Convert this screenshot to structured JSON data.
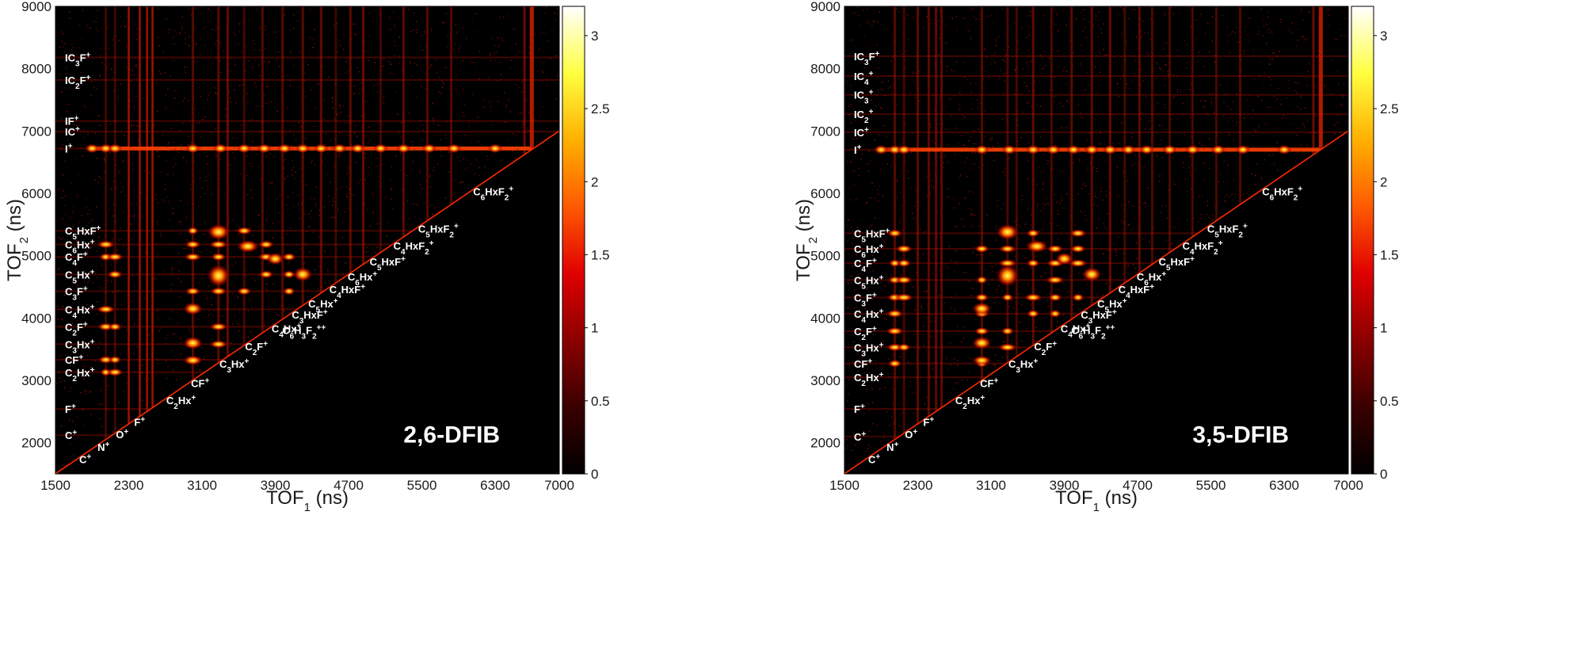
{
  "chart_data": [
    {
      "type": "heatmap",
      "title": "2,6-DFIB",
      "xlabel": "TOF1 (ns)",
      "ylabel": "TOF2 (ns)",
      "x_ticks": [
        1500,
        2300,
        3100,
        3900,
        4700,
        5500,
        6300,
        7000
      ],
      "y_ticks": [
        2000,
        3000,
        4000,
        5000,
        6000,
        7000,
        8000,
        9000
      ],
      "y_tick_labels": [
        "2000",
        "3000",
        "4000",
        "5000",
        "6000",
        "7000",
        "8000",
        "9000"
      ],
      "xlim": [
        1500,
        7000
      ],
      "ylim": [
        1500,
        9000
      ],
      "colorbar": {
        "min": 0,
        "max": 3.2,
        "ticks": [
          0,
          0.5,
          1,
          1.5,
          2,
          2.5,
          3
        ],
        "tick_labels": [
          "0",
          "0.5",
          "1",
          "1.5",
          "2",
          "2.5",
          "3"
        ]
      },
      "colormap": [
        "#000000",
        "#3a0000",
        "#8b0000",
        "#e00000",
        "#ff5a00",
        "#ffb000",
        "#ffff40",
        "#ffffff"
      ],
      "ions_y_axis": [
        {
          "ion": "IC3F+",
          "tof": 8180
        },
        {
          "ion": "IC2F+",
          "tof": 7820
        },
        {
          "ion": "IF+",
          "tof": 7160
        },
        {
          "ion": "IC+",
          "tof": 6990
        },
        {
          "ion": "I+",
          "tof": 6720
        },
        {
          "ion": "C5HxF+",
          "tof": 5400
        },
        {
          "ion": "C6Hx+",
          "tof": 5180
        },
        {
          "ion": "C4F+",
          "tof": 4980
        },
        {
          "ion": "C5Hx+",
          "tof": 4700
        },
        {
          "ion": "C3F+",
          "tof": 4430
        },
        {
          "ion": "C4Hx+",
          "tof": 4140
        },
        {
          "ion": "C2F+",
          "tof": 3860
        },
        {
          "ion": "C3Hx+",
          "tof": 3580
        },
        {
          "ion": "CF+",
          "tof": 3330
        },
        {
          "ion": "C2Hx+",
          "tof": 3130
        },
        {
          "ion": "F+",
          "tof": 2540
        },
        {
          "ion": "C+",
          "tof": 2120
        }
      ],
      "ions_diagonal": [
        {
          "ion": "C+",
          "tof": 1950
        },
        {
          "ion": "N+",
          "tof": 2150
        },
        {
          "ion": "O+",
          "tof": 2350
        },
        {
          "ion": "F+",
          "tof": 2550
        },
        {
          "ion": "C2Hx+",
          "tof": 2900
        },
        {
          "ion": "CF+",
          "tof": 3170
        },
        {
          "ion": "C3Hx+",
          "tof": 3480
        },
        {
          "ion": "C2F+",
          "tof": 3760
        },
        {
          "ion": "C4Hx+",
          "tof": 4050
        },
        {
          "ion": "C3HxF+",
          "tof": 4270
        },
        {
          "ion": "C6H3F2++",
          "tof": 4200
        },
        {
          "ion": "C5Hx+",
          "tof": 4450
        },
        {
          "ion": "C4HxF+",
          "tof": 4680
        },
        {
          "ion": "C6Hx+",
          "tof": 4880
        },
        {
          "ion": "C5HxF+",
          "tof": 5120
        },
        {
          "ion": "C4HxF2+",
          "tof": 5380
        },
        {
          "ion": "C5HxF2+",
          "tof": 5650
        },
        {
          "ion": "C6HxF2+",
          "tof": 6250
        }
      ]
    },
    {
      "type": "heatmap",
      "title": "3,5-DFIB",
      "xlabel": "TOF1 (ns)",
      "ylabel": "TOF2 (ns)",
      "x_ticks": [
        1500,
        2300,
        3100,
        3900,
        4700,
        5500,
        6300,
        7000
      ],
      "y_ticks": [
        2000,
        3000,
        4000,
        5000,
        6000,
        7000,
        8000,
        9000
      ],
      "y_tick_labels": [
        "2000",
        "3000",
        "4000",
        "5000",
        "6000",
        "7000",
        "8000",
        "9000"
      ],
      "xlim": [
        1500,
        7000
      ],
      "ylim": [
        1500,
        9000
      ],
      "colorbar": {
        "min": 0,
        "max": 3.2,
        "ticks": [
          0,
          0.5,
          1,
          1.5,
          2,
          2.5,
          3
        ],
        "tick_labels": [
          "0",
          "0.5",
          "1",
          "1.5",
          "2",
          "2.5",
          "3"
        ]
      },
      "colormap": [
        "#000000",
        "#3a0000",
        "#8b0000",
        "#e00000",
        "#ff5a00",
        "#ffb000",
        "#ffff40",
        "#ffffff"
      ],
      "ions_y_axis": [
        {
          "ion": "IC3F+",
          "tof": 8200
        },
        {
          "ion": "IC4+",
          "tof": 7880
        },
        {
          "ion": "IC3+",
          "tof": 7580
        },
        {
          "ion": "IC2+",
          "tof": 7270
        },
        {
          "ion": "IC+",
          "tof": 6980
        },
        {
          "ion": "I+",
          "tof": 6700
        },
        {
          "ion": "C5HxF+",
          "tof": 5360
        },
        {
          "ion": "C6Hx+",
          "tof": 5110
        },
        {
          "ion": "C4F+",
          "tof": 4880
        },
        {
          "ion": "C5Hx+",
          "tof": 4610
        },
        {
          "ion": "C3F+",
          "tof": 4330
        },
        {
          "ion": "C4Hx+",
          "tof": 4070
        },
        {
          "ion": "C2F+",
          "tof": 3790
        },
        {
          "ion": "C3Hx+",
          "tof": 3530
        },
        {
          "ion": "CF+",
          "tof": 3270
        },
        {
          "ion": "C2Hx+",
          "tof": 3050
        },
        {
          "ion": "F+",
          "tof": 2540
        },
        {
          "ion": "C+",
          "tof": 2100
        }
      ],
      "ions_diagonal": [
        {
          "ion": "C+",
          "tof": 1950
        },
        {
          "ion": "N+",
          "tof": 2150
        },
        {
          "ion": "O+",
          "tof": 2350
        },
        {
          "ion": "F+",
          "tof": 2550
        },
        {
          "ion": "C2Hx+",
          "tof": 2900
        },
        {
          "ion": "CF+",
          "tof": 3170
        },
        {
          "ion": "C3Hx+",
          "tof": 3480
        },
        {
          "ion": "C2F+",
          "tof": 3760
        },
        {
          "ion": "C4Hx+",
          "tof": 4050
        },
        {
          "ion": "C3HxF+",
          "tof": 4270
        },
        {
          "ion": "C6H3F2++",
          "tof": 4200
        },
        {
          "ion": "C5Hx+",
          "tof": 4450
        },
        {
          "ion": "C4HxF+",
          "tof": 4680
        },
        {
          "ion": "C6Hx+",
          "tof": 4880
        },
        {
          "ion": "C5HxF+",
          "tof": 5120
        },
        {
          "ion": "C4HxF2+",
          "tof": 5380
        },
        {
          "ion": "C5HxF2+",
          "tof": 5650
        },
        {
          "ion": "C6HxF2+",
          "tof": 6250
        }
      ]
    }
  ]
}
